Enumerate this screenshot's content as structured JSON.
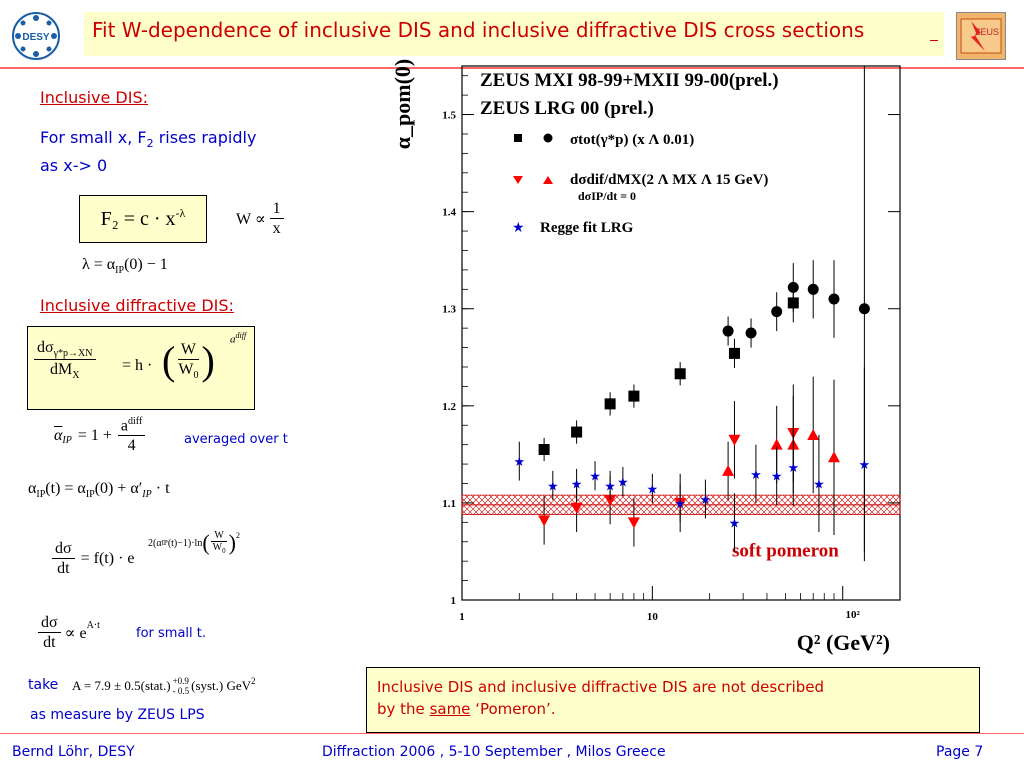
{
  "title": "Fit W-dependence of inclusive DIS and inclusive diffractive DIS cross sections",
  "logo_desy": "DESY",
  "logo_zeus": "ZEUS",
  "left": {
    "incl_heading": "Inclusive DIS:",
    "incl_text_1": "For small x, F",
    "incl_text_sub": "2",
    "incl_text_2": " rises rapidly",
    "incl_text_3": "as x-> 0",
    "f2_formula": "F₂ = c · x",
    "f2_exp": "-λ",
    "w_prop": "W ∝",
    "w_num": "1",
    "w_den": "x",
    "lambda_eq": "λ = α",
    "lambda_sub": "IP",
    "lambda_rest": "(0) − 1",
    "diff_heading": "Inclusive diffractive DIS:",
    "dsig_num": "dσ",
    "dsig_sub": "γ*p→XN",
    "dsig_den": "dM",
    "dsig_den_sub": "X",
    "dsig_eq": "= h ·",
    "dsig_w": "W",
    "dsig_w0": "W",
    "dsig_w0_sub": "0",
    "dsig_exp": "a",
    "dsig_exp_sup": "diff",
    "abar_lhs": "α",
    "abar_sub": "IP",
    "abar_eq": "= 1 +",
    "abar_num": "a",
    "abar_num_sup": "diff",
    "abar_den": "4",
    "averaged": "averaged over t",
    "alpha_t": "α",
    "alpha_t_sub": "IP",
    "alpha_t_rest": "(t) = α",
    "alpha_t_sub2": "IP",
    "alpha_t_rest2": "(0) + α′",
    "alpha_t_sub3": "IP",
    "alpha_t_rest3": " · t",
    "dsdt_num": "dσ",
    "dsdt_den": "dt",
    "dsdt_eq": "= f(t) · e",
    "dsdt_exp": "2(α",
    "dsdt_exp_sub": "IP",
    "dsdt_exp_rest": "(t)−1)·ln",
    "dsdt_exp_w": "W",
    "dsdt_exp_w0": "W",
    "dsdt_exp_w0_sub": "0",
    "dsdt_exp_pow": "2",
    "small_num": "dσ",
    "small_den": "dt",
    "small_prop": "∝ e",
    "small_exp": "A·t",
    "small_t": "for small t.",
    "take": "take",
    "a_value": "A = 7.9 ± 0.5(stat.)",
    "a_plus": "+0.9",
    "a_minus": "- 0.5",
    "a_syst": "(syst.) GeV",
    "a_pow": "2",
    "lps": "as measure by ZEUS LPS"
  },
  "chart_data": {
    "type": "scatter",
    "title": "",
    "xlabel": "Q² (GeV²)",
    "ylabel": "α_pom(0)",
    "xscale": "log",
    "xlim": [
      1,
      200
    ],
    "ylim": [
      1.0,
      1.55
    ],
    "x_ticks": [
      "1",
      "10",
      "10²"
    ],
    "y_ticks": [
      "1",
      "1.1",
      "1.2",
      "1.3",
      "1.4",
      "1.5"
    ],
    "legend": {
      "line1": "ZEUS MXI 98-99+MXII 99-00(prel.)",
      "line2": "ZEUS LRG 00 (prel.)",
      "tot": "σtot(γ*p)  (x Λ 0.01)",
      "dif": "dσdif/dMX(2 Λ MX Λ 15 GeV)",
      "dif2": "dσIP/dt = 0",
      "regge": "Regge fit LRG"
    },
    "band": {
      "label": "soft pomeron",
      "low": 1.088,
      "high": 1.108,
      "color": "#cc0000"
    },
    "series": [
      {
        "name": "σtot MXI (squares)",
        "marker": "square",
        "color": "#000000",
        "x": [
          2.7,
          4,
          6,
          8,
          14,
          27,
          55
        ],
        "y": [
          1.155,
          1.173,
          1.202,
          1.21,
          1.233,
          1.254,
          1.306
        ],
        "err": [
          0.012,
          0.012,
          0.012,
          0.012,
          0.012,
          0.015,
          0.02
        ]
      },
      {
        "name": "σtot MXII (circles)",
        "marker": "circle",
        "color": "#000000",
        "x": [
          25,
          33,
          45,
          55,
          70,
          90,
          130
        ],
        "y": [
          1.277,
          1.275,
          1.297,
          1.322,
          1.32,
          1.31,
          1.3
        ],
        "err": [
          0.015,
          0.015,
          0.02,
          0.025,
          0.03,
          0.04,
          0.25
        ]
      },
      {
        "name": "dσdif MXI (down triangles)",
        "marker": "tri-down",
        "color": "#ff0000",
        "x": [
          2.7,
          4,
          6,
          8,
          14,
          27,
          55
        ],
        "y": [
          1.082,
          1.095,
          1.103,
          1.08,
          1.1,
          1.165,
          1.172
        ],
        "err": [
          0.025,
          0.025,
          0.025,
          0.025,
          0.03,
          0.04,
          0.05
        ]
      },
      {
        "name": "dσdif MXII (up triangles)",
        "marker": "tri-up",
        "color": "#ff0000",
        "x": [
          25,
          45,
          55,
          70,
          90
        ],
        "y": [
          1.133,
          1.16,
          1.16,
          1.17,
          1.147
        ],
        "err": [
          0.03,
          0.04,
          0.05,
          0.06,
          0.08
        ]
      },
      {
        "name": "Regge fit LRG (stars)",
        "marker": "star",
        "color": "#0000cc",
        "x": [
          2,
          3,
          4,
          5,
          6,
          7,
          10,
          14,
          19,
          27,
          35,
          45,
          55,
          75,
          130
        ],
        "y": [
          1.143,
          1.118,
          1.12,
          1.128,
          1.118,
          1.122,
          1.115,
          1.1,
          1.104,
          1.08,
          1.13,
          1.128,
          1.137,
          1.12,
          1.14
        ],
        "err": [
          0.02,
          0.015,
          0.015,
          0.015,
          0.015,
          0.015,
          0.015,
          0.02,
          0.02,
          0.03,
          0.03,
          0.03,
          0.04,
          0.05,
          0.1
        ]
      }
    ]
  },
  "note": {
    "text1": "Inclusive DIS and inclusive diffractive DIS are not described",
    "text2a": "by the ",
    "text2b": "same",
    "text2c": " ‘Pomeron’."
  },
  "footer": {
    "author": "Bernd Löhr, DESY",
    "conference": "Diffraction 2006 ,  5-10 September ,  Milos Greece",
    "page": "Page 7"
  }
}
